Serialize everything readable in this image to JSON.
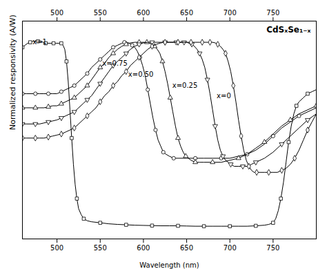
{
  "chart_data": {
    "type": "line",
    "formula_text": "CdSₓSe₁₋ₓ",
    "xlabel": "Wavelength (nm)",
    "ylabel": "Normalized responsivity (A/W)",
    "xlim": [
      460,
      800
    ],
    "xticks": [
      500,
      550,
      600,
      650,
      700,
      750
    ],
    "ylim": [
      0.0,
      1.08
    ],
    "yticks": [],
    "tick_labels": "x",
    "grid": false,
    "series": [
      {
        "marker": "square",
        "color": "#000000",
        "x": [
          460,
          463,
          466,
          469,
          472,
          475,
          478,
          481,
          484,
          487,
          490,
          493,
          496,
          499,
          502,
          505,
          507,
          509,
          511,
          513,
          515,
          517,
          519,
          521,
          523,
          525,
          528,
          531,
          535,
          540,
          550,
          560,
          570,
          580,
          590,
          600,
          610,
          620,
          630,
          640,
          650,
          660,
          670,
          680,
          690,
          700,
          710,
          720,
          730,
          740,
          745,
          750,
          753,
          756,
          759,
          762,
          765,
          768,
          771,
          774,
          777,
          780,
          785,
          790,
          795,
          800
        ],
        "values": [
          0.95,
          0.96,
          0.97,
          0.975,
          0.98,
          0.98,
          0.98,
          0.98,
          0.975,
          0.97,
          0.97,
          0.97,
          0.97,
          0.97,
          0.97,
          0.97,
          0.96,
          0.94,
          0.88,
          0.78,
          0.64,
          0.5,
          0.37,
          0.27,
          0.2,
          0.15,
          0.12,
          0.1,
          0.09,
          0.085,
          0.08,
          0.075,
          0.072,
          0.07,
          0.068,
          0.067,
          0.066,
          0.065,
          0.065,
          0.065,
          0.064,
          0.063,
          0.063,
          0.063,
          0.063,
          0.063,
          0.063,
          0.063,
          0.065,
          0.068,
          0.072,
          0.08,
          0.1,
          0.14,
          0.2,
          0.28,
          0.38,
          0.48,
          0.56,
          0.62,
          0.66,
          0.68,
          0.7,
          0.72,
          0.73,
          0.74
        ]
      },
      {
        "marker": "circle",
        "color": "#000000",
        "x": [
          460,
          465,
          470,
          475,
          480,
          485,
          490,
          495,
          500,
          505,
          510,
          515,
          520,
          525,
          530,
          535,
          540,
          545,
          550,
          555,
          560,
          565,
          570,
          575,
          578,
          581,
          584,
          587,
          590,
          593,
          596,
          599,
          602,
          605,
          608,
          611,
          614,
          617,
          620,
          623,
          626,
          630,
          635,
          640,
          650,
          660,
          670,
          680,
          690,
          700,
          710,
          720,
          730,
          740,
          750,
          760,
          770,
          780,
          790,
          800
        ],
        "values": [
          0.72,
          0.72,
          0.72,
          0.72,
          0.72,
          0.72,
          0.72,
          0.72,
          0.72,
          0.73,
          0.74,
          0.75,
          0.76,
          0.78,
          0.8,
          0.82,
          0.85,
          0.87,
          0.89,
          0.91,
          0.93,
          0.95,
          0.96,
          0.97,
          0.975,
          0.975,
          0.97,
          0.96,
          0.95,
          0.93,
          0.9,
          0.86,
          0.81,
          0.74,
          0.67,
          0.6,
          0.54,
          0.49,
          0.46,
          0.43,
          0.42,
          0.41,
          0.4,
          0.4,
          0.4,
          0.4,
          0.4,
          0.4,
          0.4,
          0.4,
          0.41,
          0.42,
          0.44,
          0.47,
          0.51,
          0.55,
          0.58,
          0.61,
          0.63,
          0.65
        ]
      },
      {
        "marker": "triangle-up",
        "color": "#000000",
        "x": [
          460,
          465,
          470,
          475,
          480,
          485,
          490,
          495,
          500,
          505,
          510,
          515,
          520,
          525,
          530,
          535,
          540,
          545,
          550,
          555,
          560,
          565,
          570,
          575,
          580,
          585,
          590,
          595,
          598,
          601,
          604,
          607,
          610,
          613,
          616,
          619,
          622,
          625,
          628,
          631,
          634,
          637,
          640,
          643,
          646,
          649,
          652,
          655,
          660,
          665,
          670,
          680,
          690,
          700,
          710,
          720,
          730,
          740,
          750,
          760,
          770,
          780,
          790,
          800
        ],
        "values": [
          0.65,
          0.65,
          0.65,
          0.65,
          0.65,
          0.65,
          0.655,
          0.66,
          0.66,
          0.67,
          0.68,
          0.69,
          0.7,
          0.72,
          0.74,
          0.76,
          0.79,
          0.82,
          0.85,
          0.87,
          0.9,
          0.92,
          0.94,
          0.955,
          0.965,
          0.972,
          0.975,
          0.975,
          0.975,
          0.975,
          0.975,
          0.97,
          0.965,
          0.955,
          0.94,
          0.92,
          0.88,
          0.83,
          0.77,
          0.7,
          0.63,
          0.56,
          0.5,
          0.46,
          0.43,
          0.41,
          0.4,
          0.39,
          0.38,
          0.38,
          0.38,
          0.38,
          0.38,
          0.39,
          0.4,
          0.42,
          0.45,
          0.48,
          0.52,
          0.56,
          0.59,
          0.62,
          0.64,
          0.66
        ]
      },
      {
        "marker": "triangle-down",
        "color": "#000000",
        "x": [
          460,
          465,
          470,
          475,
          480,
          485,
          490,
          495,
          500,
          505,
          510,
          515,
          520,
          525,
          530,
          535,
          540,
          545,
          550,
          555,
          560,
          565,
          570,
          575,
          580,
          585,
          590,
          595,
          600,
          605,
          610,
          615,
          620,
          625,
          630,
          635,
          638,
          641,
          644,
          647,
          650,
          653,
          656,
          659,
          662,
          665,
          668,
          671,
          674,
          677,
          680,
          683,
          686,
          689,
          692,
          695,
          698,
          701,
          705,
          710,
          715,
          720,
          725,
          730,
          740,
          750,
          760,
          770,
          780,
          790,
          800
        ],
        "values": [
          0.57,
          0.57,
          0.57,
          0.57,
          0.57,
          0.575,
          0.58,
          0.585,
          0.59,
          0.6,
          0.61,
          0.62,
          0.63,
          0.65,
          0.67,
          0.69,
          0.71,
          0.74,
          0.77,
          0.8,
          0.83,
          0.86,
          0.88,
          0.9,
          0.92,
          0.94,
          0.955,
          0.965,
          0.972,
          0.975,
          0.975,
          0.975,
          0.975,
          0.975,
          0.975,
          0.975,
          0.975,
          0.975,
          0.975,
          0.975,
          0.975,
          0.97,
          0.965,
          0.955,
          0.94,
          0.92,
          0.89,
          0.85,
          0.79,
          0.72,
          0.64,
          0.56,
          0.49,
          0.44,
          0.41,
          0.39,
          0.38,
          0.37,
          0.36,
          0.36,
          0.36,
          0.36,
          0.37,
          0.38,
          0.4,
          0.43,
          0.47,
          0.51,
          0.55,
          0.59,
          0.62
        ]
      },
      {
        "marker": "diamond",
        "color": "#000000",
        "x": [
          460,
          465,
          470,
          475,
          480,
          485,
          490,
          495,
          500,
          505,
          510,
          515,
          520,
          525,
          530,
          535,
          540,
          545,
          550,
          555,
          560,
          565,
          570,
          575,
          580,
          585,
          590,
          595,
          600,
          605,
          610,
          615,
          620,
          625,
          630,
          635,
          640,
          645,
          650,
          655,
          660,
          665,
          668,
          671,
          674,
          677,
          680,
          683,
          686,
          689,
          692,
          695,
          698,
          701,
          704,
          707,
          710,
          713,
          716,
          719,
          722,
          725,
          728,
          731,
          735,
          740,
          745,
          750,
          755,
          760,
          765,
          770,
          775,
          780,
          785,
          790,
          795,
          800
        ],
        "values": [
          0.5,
          0.5,
          0.5,
          0.5,
          0.5,
          0.5,
          0.505,
          0.51,
          0.515,
          0.52,
          0.53,
          0.54,
          0.55,
          0.57,
          0.59,
          0.61,
          0.63,
          0.65,
          0.68,
          0.71,
          0.73,
          0.76,
          0.78,
          0.81,
          0.83,
          0.86,
          0.88,
          0.9,
          0.92,
          0.94,
          0.955,
          0.965,
          0.972,
          0.975,
          0.975,
          0.975,
          0.975,
          0.975,
          0.975,
          0.975,
          0.975,
          0.975,
          0.975,
          0.975,
          0.975,
          0.975,
          0.975,
          0.972,
          0.965,
          0.955,
          0.94,
          0.92,
          0.88,
          0.83,
          0.76,
          0.68,
          0.59,
          0.51,
          0.44,
          0.39,
          0.36,
          0.34,
          0.33,
          0.33,
          0.33,
          0.33,
          0.33,
          0.33,
          0.33,
          0.34,
          0.35,
          0.37,
          0.4,
          0.44,
          0.49,
          0.54,
          0.58,
          0.62
        ]
      }
    ],
    "annotations": [
      {
        "text": "x=1",
        "x": 480,
        "frac": 0.895
      },
      {
        "text": "x=0.75",
        "x": 567,
        "frac": 0.795
      },
      {
        "text": "x=0.50",
        "x": 597,
        "frac": 0.745
      },
      {
        "text": "x=0.25",
        "x": 648,
        "frac": 0.695
      },
      {
        "text": "x=0",
        "x": 693,
        "frac": 0.645
      }
    ]
  }
}
